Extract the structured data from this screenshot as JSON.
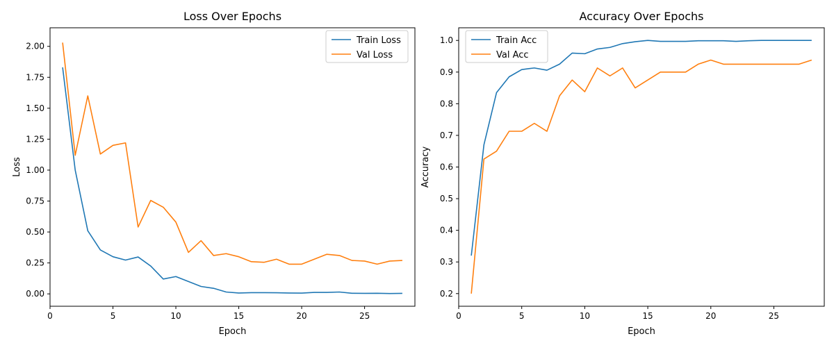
{
  "chart_data": [
    {
      "type": "line",
      "title": "Loss Over Epochs",
      "xlabel": "Epoch",
      "ylabel": "Loss",
      "xlim": [
        0,
        29
      ],
      "ylim": [
        -0.1,
        2.15
      ],
      "xticks": [
        0,
        5,
        10,
        15,
        20,
        25
      ],
      "xtick_labels": [
        "0",
        "5",
        "10",
        "15",
        "20",
        "25"
      ],
      "yticks": [
        0,
        0.25,
        0.5,
        0.75,
        1.0,
        1.25,
        1.5,
        1.75,
        2.0
      ],
      "ytick_labels": [
        "0.00",
        "0.25",
        "0.50",
        "0.75",
        "1.00",
        "1.25",
        "1.50",
        "1.75",
        "2.00"
      ],
      "grid": false,
      "legend_position": "top-right",
      "x": [
        1,
        2,
        3,
        4,
        5,
        6,
        7,
        8,
        9,
        10,
        11,
        12,
        13,
        14,
        15,
        16,
        17,
        18,
        19,
        20,
        21,
        22,
        23,
        24,
        25,
        26,
        27,
        28
      ],
      "series": [
        {
          "name": "Train Loss",
          "color": "#1f77b4",
          "values": [
            1.83,
            1.0,
            0.51,
            0.355,
            0.3,
            0.273,
            0.298,
            0.225,
            0.12,
            0.14,
            0.1,
            0.06,
            0.045,
            0.015,
            0.007,
            0.01,
            0.01,
            0.009,
            0.007,
            0.006,
            0.012,
            0.012,
            0.015,
            0.005,
            0.004,
            0.005,
            0.003,
            0.004
          ]
        },
        {
          "name": "Val Loss",
          "color": "#ff7f0e",
          "values": [
            2.03,
            1.12,
            1.6,
            1.13,
            1.2,
            1.22,
            0.54,
            0.755,
            0.7,
            0.58,
            0.335,
            0.43,
            0.31,
            0.325,
            0.3,
            0.26,
            0.255,
            0.28,
            0.24,
            0.24,
            0.28,
            0.32,
            0.31,
            0.27,
            0.265,
            0.24,
            0.265,
            0.27
          ]
        }
      ]
    },
    {
      "type": "line",
      "title": "Accuracy Over Epochs",
      "xlabel": "Epoch",
      "ylabel": "Accuracy",
      "xlim": [
        0,
        29
      ],
      "ylim": [
        0.16,
        1.04
      ],
      "xticks": [
        0,
        5,
        10,
        15,
        20,
        25
      ],
      "xtick_labels": [
        "0",
        "5",
        "10",
        "15",
        "20",
        "25"
      ],
      "yticks": [
        0.2,
        0.3,
        0.4,
        0.5,
        0.6,
        0.7,
        0.8,
        0.9,
        1.0
      ],
      "ytick_labels": [
        "0.2",
        "0.3",
        "0.4",
        "0.5",
        "0.6",
        "0.7",
        "0.8",
        "0.9",
        "1.0"
      ],
      "grid": false,
      "legend_position": "top-left",
      "x": [
        1,
        2,
        3,
        4,
        5,
        6,
        7,
        8,
        9,
        10,
        11,
        12,
        13,
        14,
        15,
        16,
        17,
        18,
        19,
        20,
        21,
        22,
        23,
        24,
        25,
        26,
        27,
        28
      ],
      "series": [
        {
          "name": "Train Acc",
          "color": "#1f77b4",
          "values": [
            0.32,
            0.67,
            0.835,
            0.885,
            0.908,
            0.913,
            0.906,
            0.925,
            0.96,
            0.958,
            0.973,
            0.978,
            0.99,
            0.996,
            1.0,
            0.997,
            0.997,
            0.997,
            0.999,
            0.999,
            0.999,
            0.997,
            0.999,
            1.0,
            1.0,
            1.0,
            1.0,
            1.0
          ]
        },
        {
          "name": "Val Acc",
          "color": "#ff7f0e",
          "values": [
            0.2,
            0.625,
            0.65,
            0.713,
            0.713,
            0.738,
            0.713,
            0.825,
            0.875,
            0.838,
            0.913,
            0.888,
            0.913,
            0.85,
            0.875,
            0.9,
            0.9,
            0.9,
            0.925,
            0.938,
            0.925,
            0.925,
            0.925,
            0.925,
            0.925,
            0.925,
            0.925,
            0.938
          ]
        }
      ]
    }
  ]
}
